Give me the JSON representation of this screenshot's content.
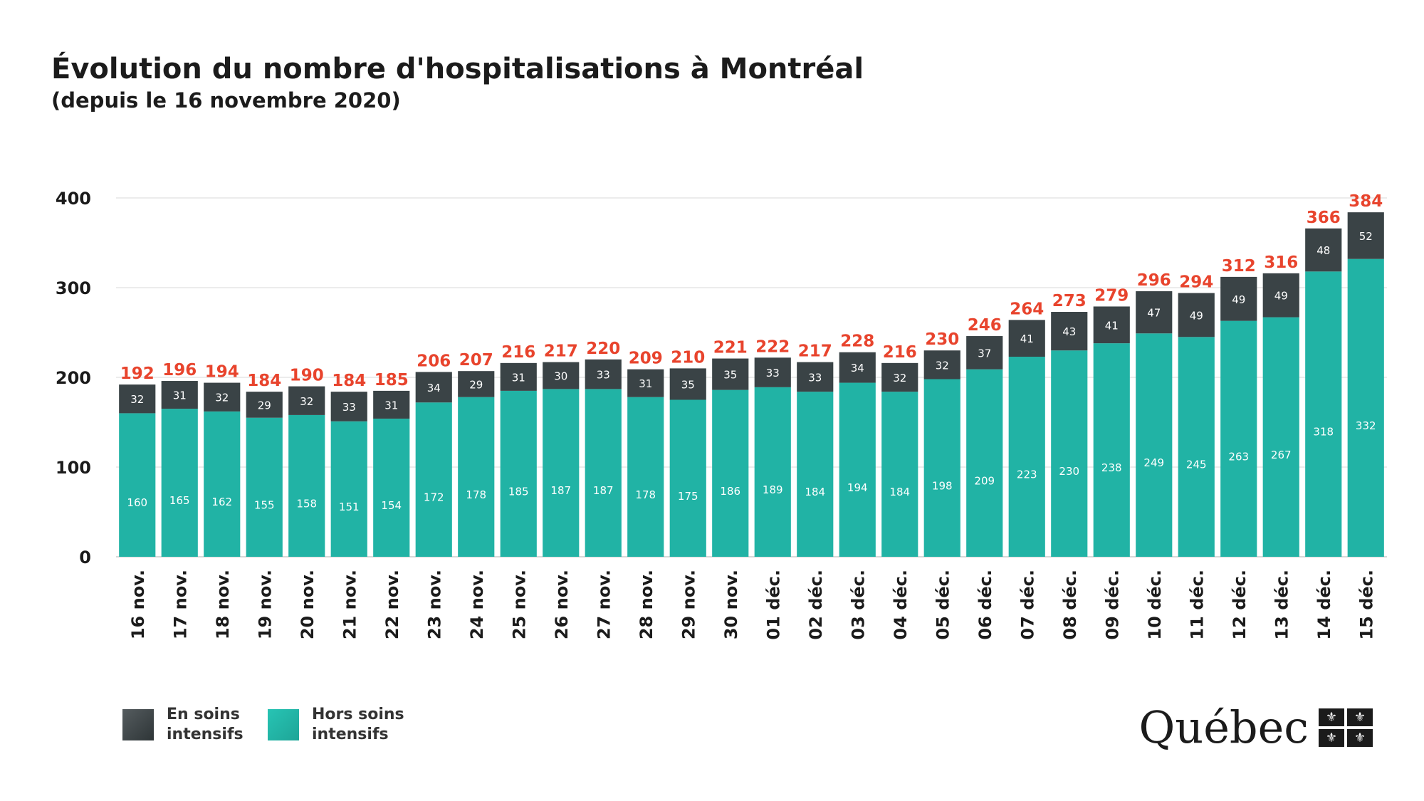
{
  "header": {
    "title": "Évolution du nombre d'hospitalisations à Montréal",
    "subtitle": "(depuis le 16 novembre 2020)"
  },
  "legend": {
    "icu_label": "En soins intensifs",
    "non_icu_label": "Hors soins intensifs"
  },
  "logo": {
    "text": "Québec",
    "flag_glyph": "⚜"
  },
  "colors": {
    "icu": "#3a4346",
    "non_icu": "#21b3a5",
    "total_label": "#e8442d"
  },
  "chart_data": {
    "type": "bar",
    "stacked": true,
    "categories": [
      "16 nov.",
      "17 nov.",
      "18 nov.",
      "19 nov.",
      "20 nov.",
      "21 nov.",
      "22 nov.",
      "23 nov.",
      "24 nov.",
      "25 nov.",
      "26 nov.",
      "27 nov.",
      "28 nov.",
      "29 nov.",
      "30 nov.",
      "01 déc.",
      "02 déc.",
      "03 déc.",
      "04 déc.",
      "05 déc.",
      "06 déc.",
      "07 déc.",
      "08 déc.",
      "09 déc.",
      "10 déc.",
      "11 déc.",
      "12 déc.",
      "13 déc.",
      "14 déc.",
      "15 déc."
    ],
    "series": [
      {
        "name": "Hors soins intensifs",
        "values": [
          160,
          165,
          162,
          155,
          158,
          151,
          154,
          172,
          178,
          185,
          187,
          187,
          178,
          175,
          186,
          189,
          184,
          194,
          184,
          198,
          209,
          223,
          230,
          238,
          249,
          245,
          263,
          267,
          318,
          332
        ]
      },
      {
        "name": "En soins intensifs",
        "values": [
          32,
          31,
          32,
          29,
          32,
          33,
          31,
          34,
          29,
          31,
          30,
          33,
          31,
          35,
          35,
          33,
          33,
          34,
          32,
          32,
          37,
          41,
          43,
          41,
          47,
          49,
          49,
          49,
          48,
          52
        ]
      }
    ],
    "totals": [
      192,
      196,
      194,
      184,
      190,
      184,
      185,
      206,
      207,
      216,
      217,
      220,
      209,
      210,
      221,
      222,
      217,
      228,
      216,
      230,
      246,
      264,
      273,
      279,
      296,
      294,
      312,
      316,
      366,
      384
    ],
    "yticks": [
      0,
      100,
      200,
      300,
      400
    ],
    "ylim": [
      0,
      400
    ],
    "grid": true,
    "legend_position": "bottom-left"
  }
}
